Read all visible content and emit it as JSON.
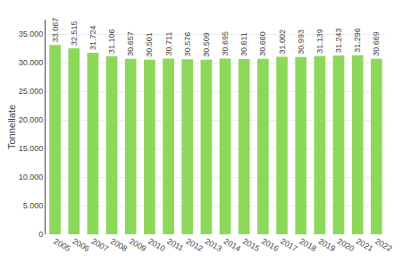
{
  "chart_data": {
    "type": "bar",
    "categories": [
      "2005",
      "2006",
      "2007",
      "2008",
      "2009",
      "2010",
      "2011",
      "2012",
      "2013",
      "2014",
      "2015",
      "2016",
      "2017",
      "2018",
      "2019",
      "2020",
      "2021",
      "2022"
    ],
    "values": [
      33067,
      32515,
      31724,
      31106,
      30657,
      30501,
      30711,
      30576,
      30509,
      30695,
      30611,
      30660,
      31002,
      30993,
      31139,
      31243,
      31296,
      30669
    ],
    "value_labels": [
      "33.067",
      "32.515",
      "31.724",
      "31.106",
      "30.657",
      "30.501",
      "30.711",
      "30.576",
      "30.509",
      "30.695",
      "30.611",
      "30.660",
      "31.002",
      "30.993",
      "31.139",
      "31.243",
      "31.296",
      "30.669"
    ],
    "data_labels": true,
    "color": "#8dd85a",
    "y_label": "Tonnellate",
    "ylim": [
      0,
      37500
    ],
    "yticks": [
      0,
      {
        "value": 5000,
        "label": "5.000"
      },
      {
        "value": 10000,
        "label": "10.000"
      },
      {
        "value": 15000,
        "label": "15.000"
      },
      {
        "value": 20000,
        "label": "20.000"
      },
      {
        "value": 25000,
        "label": "25.000"
      },
      {
        "value": 30000,
        "label": "30.000"
      },
      {
        "value": 35000,
        "label": "35.000"
      }
    ],
    "grid": true
  }
}
